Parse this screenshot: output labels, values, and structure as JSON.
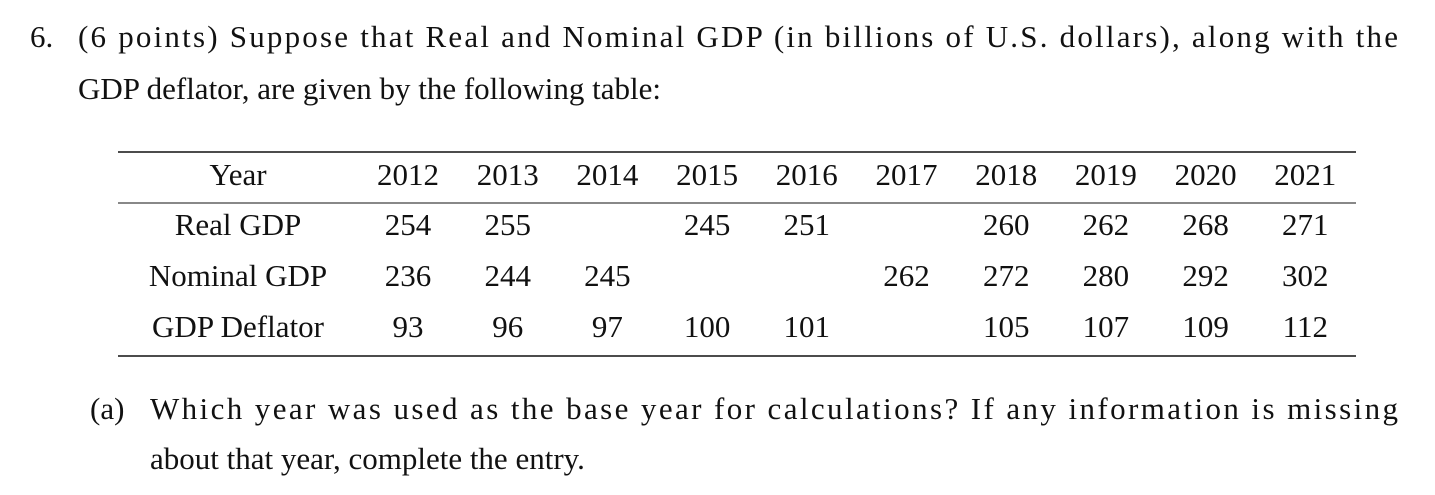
{
  "question": {
    "number": "6.",
    "lines": [
      "(6 points) Suppose that Real and Nominal GDP (in billions of U.S. dollars), along with the",
      "GDP deflator, are given by the following table:"
    ]
  },
  "table": {
    "header": [
      "Year",
      "2012",
      "2013",
      "2014",
      "2015",
      "2016",
      "2017",
      "2018",
      "2019",
      "2020",
      "2021"
    ],
    "rows": [
      {
        "label": "Real GDP",
        "cells": [
          254,
          255,
          null,
          245,
          251,
          null,
          260,
          262,
          268,
          271
        ]
      },
      {
        "label": "Nominal GDP",
        "cells": [
          236,
          244,
          245,
          null,
          null,
          262,
          272,
          280,
          292,
          302
        ]
      },
      {
        "label": "GDP Deflator",
        "cells": [
          93,
          96,
          97,
          100,
          101,
          null,
          105,
          107,
          109,
          112
        ]
      }
    ]
  },
  "part_a": {
    "label": "(a)",
    "lines": [
      "Which year was used as the base year for calculations? If any information is missing",
      "about that year, complete the entry."
    ]
  }
}
